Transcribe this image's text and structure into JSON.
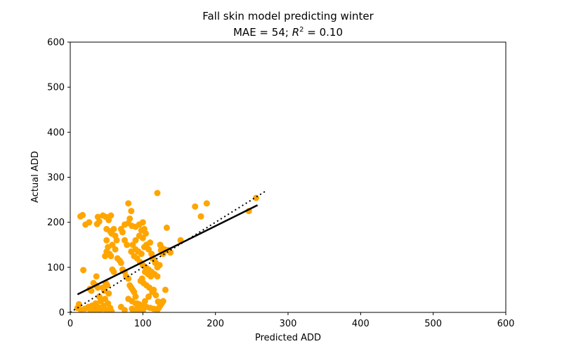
{
  "chart_data": {
    "type": "scatter",
    "title": "Fall skin model predicting winter",
    "subtitle_prefix": "MAE = 54; ",
    "subtitle_r2_symbol": "R",
    "subtitle_r2_exp": "2",
    "subtitle_suffix": " = 0.10",
    "xlabel": "Predicted ADD",
    "ylabel": "Actual ADD",
    "xlim": [
      0,
      600
    ],
    "ylim": [
      0,
      600
    ],
    "xticks": [
      0,
      100,
      200,
      300,
      400,
      500,
      600
    ],
    "yticks": [
      0,
      100,
      200,
      300,
      400,
      500,
      600
    ],
    "grid": false,
    "point_color": "#ffa500",
    "line_color": "#000000",
    "regression_line": {
      "x": [
        10,
        258
      ],
      "y": [
        40,
        238
      ]
    },
    "identity_line": {
      "x": [
        0,
        268
      ],
      "y": [
        0,
        268
      ],
      "style": "dotted"
    },
    "points": [
      [
        14,
        213
      ],
      [
        17,
        216
      ],
      [
        21,
        195
      ],
      [
        26,
        200
      ],
      [
        18,
        94
      ],
      [
        12,
        18
      ],
      [
        10,
        10
      ],
      [
        15,
        5
      ],
      [
        20,
        8
      ],
      [
        25,
        12
      ],
      [
        28,
        3
      ],
      [
        30,
        15
      ],
      [
        33,
        5
      ],
      [
        35,
        20
      ],
      [
        38,
        12
      ],
      [
        40,
        3
      ],
      [
        42,
        25
      ],
      [
        44,
        8
      ],
      [
        46,
        15
      ],
      [
        48,
        30
      ],
      [
        50,
        5
      ],
      [
        52,
        20
      ],
      [
        55,
        10
      ],
      [
        57,
        2
      ],
      [
        45,
        55
      ],
      [
        47,
        48
      ],
      [
        49,
        65
      ],
      [
        51,
        60
      ],
      [
        53,
        42
      ],
      [
        32,
        65
      ],
      [
        35,
        60
      ],
      [
        38,
        55
      ],
      [
        40,
        35
      ],
      [
        42,
        30
      ],
      [
        27,
        52
      ],
      [
        29,
        48
      ],
      [
        36,
        80
      ],
      [
        48,
        125
      ],
      [
        50,
        135
      ],
      [
        52,
        145
      ],
      [
        54,
        130
      ],
      [
        56,
        125
      ],
      [
        58,
        95
      ],
      [
        60,
        90
      ],
      [
        45,
        215
      ],
      [
        49,
        212
      ],
      [
        53,
        205
      ],
      [
        56,
        215
      ],
      [
        40,
        202
      ],
      [
        38,
        212
      ],
      [
        37,
        196
      ],
      [
        50,
        185
      ],
      [
        55,
        180
      ],
      [
        57,
        175
      ],
      [
        60,
        185
      ],
      [
        62,
        170
      ],
      [
        64,
        160
      ],
      [
        50,
        160
      ],
      [
        58,
        150
      ],
      [
        62,
        140
      ],
      [
        65,
        120
      ],
      [
        68,
        115
      ],
      [
        70,
        110
      ],
      [
        72,
        95
      ],
      [
        75,
        90
      ],
      [
        77,
        80
      ],
      [
        80,
        75
      ],
      [
        82,
        60
      ],
      [
        84,
        55
      ],
      [
        86,
        50
      ],
      [
        88,
        45
      ],
      [
        90,
        35
      ],
      [
        92,
        20
      ],
      [
        94,
        15
      ],
      [
        96,
        10
      ],
      [
        98,
        5
      ],
      [
        100,
        3
      ],
      [
        80,
        30
      ],
      [
        85,
        25
      ],
      [
        90,
        20
      ],
      [
        95,
        18
      ],
      [
        100,
        15
      ],
      [
        105,
        12
      ],
      [
        110,
        10
      ],
      [
        115,
        8
      ],
      [
        120,
        5
      ],
      [
        122,
        10
      ],
      [
        124,
        15
      ],
      [
        126,
        20
      ],
      [
        128,
        25
      ],
      [
        70,
        12
      ],
      [
        75,
        5
      ],
      [
        85,
        8
      ],
      [
        90,
        2
      ],
      [
        95,
        2
      ],
      [
        87,
        4
      ],
      [
        92,
        8
      ],
      [
        98,
        12
      ],
      [
        103,
        25
      ],
      [
        108,
        35
      ],
      [
        113,
        45
      ],
      [
        118,
        38
      ],
      [
        121,
        24
      ],
      [
        75,
        195
      ],
      [
        80,
        198
      ],
      [
        85,
        192
      ],
      [
        90,
        190
      ],
      [
        95,
        195
      ],
      [
        98,
        182
      ],
      [
        100,
        200
      ],
      [
        102,
        185
      ],
      [
        104,
        175
      ],
      [
        100,
        165
      ],
      [
        95,
        170
      ],
      [
        90,
        160
      ],
      [
        86,
        150
      ],
      [
        84,
        135
      ],
      [
        88,
        125
      ],
      [
        92,
        120
      ],
      [
        96,
        112
      ],
      [
        100,
        105
      ],
      [
        104,
        100
      ],
      [
        108,
        95
      ],
      [
        112,
        90
      ],
      [
        116,
        85
      ],
      [
        120,
        80
      ],
      [
        103,
        90
      ],
      [
        107,
        85
      ],
      [
        111,
        80
      ],
      [
        99,
        75
      ],
      [
        97,
        70
      ],
      [
        101,
        65
      ],
      [
        105,
        60
      ],
      [
        109,
        55
      ],
      [
        115,
        50
      ],
      [
        120,
        100
      ],
      [
        123,
        105
      ],
      [
        113,
        120
      ],
      [
        117,
        110
      ],
      [
        125,
        138
      ],
      [
        130,
        140
      ],
      [
        133,
        188
      ],
      [
        135,
        138
      ],
      [
        138,
        133
      ],
      [
        152,
        160
      ],
      [
        120,
        265
      ],
      [
        80,
        242
      ],
      [
        82,
        208
      ],
      [
        84,
        225
      ],
      [
        70,
        185
      ],
      [
        72,
        178
      ],
      [
        75,
        160
      ],
      [
        78,
        150
      ],
      [
        105,
        150
      ],
      [
        110,
        155
      ],
      [
        108,
        140
      ],
      [
        112,
        130
      ],
      [
        114,
        120
      ],
      [
        118,
        110
      ],
      [
        90,
        140
      ],
      [
        94,
        135
      ],
      [
        98,
        130
      ],
      [
        102,
        145
      ],
      [
        124,
        150
      ],
      [
        126,
        143
      ],
      [
        128,
        130
      ],
      [
        131,
        50
      ],
      [
        172,
        235
      ],
      [
        180,
        213
      ],
      [
        188,
        242
      ],
      [
        246,
        225
      ],
      [
        256,
        254
      ]
    ]
  }
}
